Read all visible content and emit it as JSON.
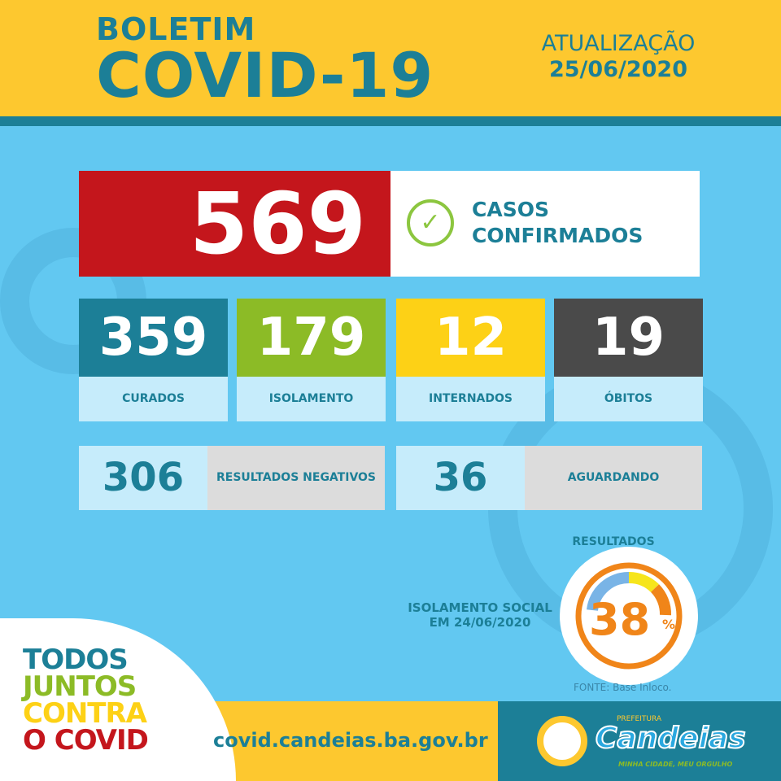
{
  "header": {
    "line1": "BOLETIM",
    "line2": "COVID-19",
    "update_label": "ATUALIZAÇÃO",
    "update_date": "25/06/2020"
  },
  "confirmed": {
    "value": "569",
    "label_line1": "CASOS",
    "label_line2": "CONFIRMADOS",
    "icon": "check-circle-icon"
  },
  "stats": [
    {
      "value": "359",
      "label": "CURADOS",
      "color": "#1c7f97"
    },
    {
      "value": "179",
      "label": "ISOLAMENTO",
      "color": "#8cbb26"
    },
    {
      "value": "12",
      "label": "INTERNADOS",
      "color": "#fdd116"
    },
    {
      "value": "19",
      "label": "ÓBITOS",
      "color": "#4a4a4a"
    }
  ],
  "results": [
    {
      "value": "306",
      "label": "RESULTADOS NEGATIVOS"
    },
    {
      "value": "36",
      "label": "AGUARDANDO RESULTADOS"
    }
  ],
  "isolation": {
    "label_line1": "ISOLAMENTO SOCIAL",
    "label_line2": "EM 24/06/2020",
    "value": "38",
    "unit": "%",
    "percent": 38,
    "source": "FONTE: Base Inloco."
  },
  "footer": {
    "slogan": [
      "TODOS",
      "JUNTOS",
      "CONTRA",
      "O COVID"
    ],
    "url": "covid.candeias.ba.gov.br",
    "logo_top": "PREFEITURA",
    "logo_name": "Candeias",
    "logo_tagline": "MINHA CIDADE, MEU ORGULHO"
  }
}
